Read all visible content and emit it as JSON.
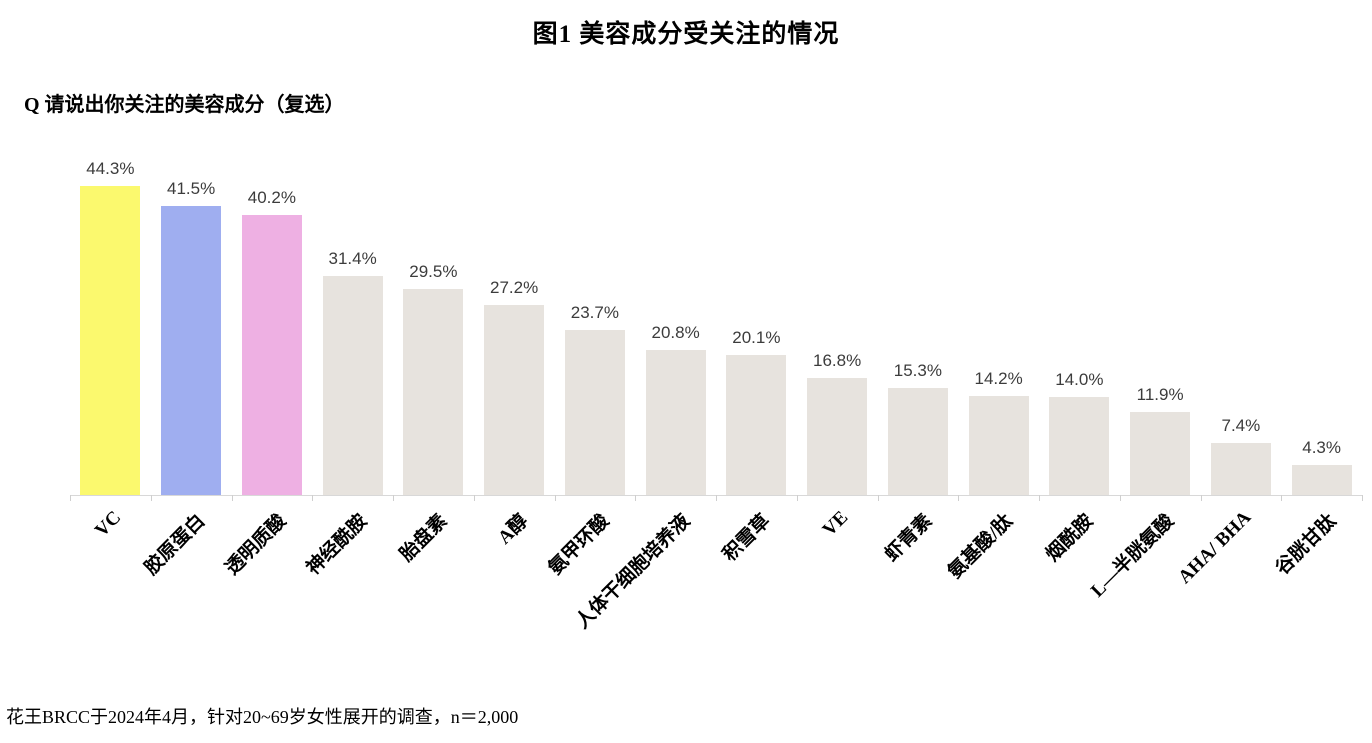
{
  "title": "图1  美容成分受关注的情况",
  "question": "Q 请说出你关注的美容成分（复选）",
  "source_note": "花王BRCC于2024年4月，针对20~69岁女性展开的调查，n＝2,000",
  "chart_data": {
    "type": "bar",
    "title": "图1  美容成分受关注的情况",
    "subtitle": "Q 请说出你关注的美容成分（复选）",
    "categories": [
      "VC",
      "胶原蛋白",
      "透明质酸",
      "神经酰胺",
      "胎盘素",
      "A醇",
      "氨甲环酸",
      "人体干细胞培养液",
      "积雪草",
      "VE",
      "虾青素",
      "氨基酸/肽",
      "烟酰胺",
      "L—半胱氨酸",
      "AHA/ BHA",
      "谷胱甘肽"
    ],
    "values": [
      44.3,
      41.5,
      40.2,
      31.4,
      29.5,
      27.2,
      23.7,
      20.8,
      20.1,
      16.8,
      15.3,
      14.2,
      14.0,
      11.9,
      7.4,
      4.3
    ],
    "value_labels": [
      "44.3%",
      "41.5%",
      "40.2%",
      "31.4%",
      "29.5%",
      "27.2%",
      "23.7%",
      "20.8%",
      "20.1%",
      "16.8%",
      "15.3%",
      "14.2%",
      "14.0%",
      "11.9%",
      "7.4%",
      "4.3%"
    ],
    "bar_colors": [
      "#fbf96e",
      "#9faef0",
      "#eeb0e3",
      "#e7e3de",
      "#e7e3de",
      "#e7e3de",
      "#e7e3de",
      "#e7e3de",
      "#e7e3de",
      "#e7e3de",
      "#e7e3de",
      "#e7e3de",
      "#e7e3de",
      "#e7e3de",
      "#e7e3de",
      "#e7e3de"
    ],
    "highlight_colors": {
      "yellow": "#fbf96e",
      "blue": "#9faef0",
      "pink": "#eeb0e3"
    },
    "default_bar_color": "#e7e3de",
    "value_label_color": "#3c3c3c",
    "axis_color": "#d8d8d8",
    "unit": "%",
    "ylim": [
      0,
      49.5
    ],
    "grid": false,
    "legend": null,
    "xlabel": "",
    "ylabel": "",
    "category_label_rotation_deg": 45
  }
}
